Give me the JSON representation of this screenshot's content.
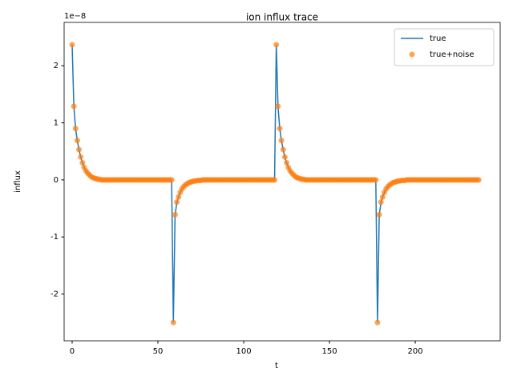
{
  "chart_data": {
    "type": "line",
    "title": "ion influx trace",
    "x_label": "t",
    "y_label": "influx",
    "y_offset_label": "1e−8",
    "x": [
      0,
      1,
      2,
      3,
      4,
      5,
      6,
      7,
      8,
      9,
      10,
      11,
      12,
      13,
      14,
      15,
      16,
      17,
      18,
      19,
      20,
      21,
      22,
      23,
      24,
      25,
      26,
      27,
      28,
      29,
      30,
      31,
      32,
      33,
      34,
      35,
      36,
      37,
      38,
      39,
      40,
      41,
      42,
      43,
      44,
      45,
      46,
      47,
      48,
      49,
      50,
      51,
      52,
      53,
      54,
      55,
      56,
      57,
      58,
      59,
      60,
      61,
      62,
      63,
      64,
      65,
      66,
      67,
      68,
      69,
      70,
      71,
      72,
      73,
      74,
      75,
      76,
      77,
      78,
      79,
      80,
      81,
      82,
      83,
      84,
      85,
      86,
      87,
      88,
      89,
      90,
      91,
      92,
      93,
      94,
      95,
      96,
      97,
      98,
      99,
      100,
      101,
      102,
      103,
      104,
      105,
      106,
      107,
      108,
      109,
      110,
      111,
      112,
      113,
      114,
      115,
      116,
      117,
      118,
      119,
      120,
      121,
      122,
      123,
      124,
      125,
      126,
      127,
      128,
      129,
      130,
      131,
      132,
      133,
      134,
      135,
      136,
      137,
      138,
      139,
      140,
      141,
      142,
      143,
      144,
      145,
      146,
      147,
      148,
      149,
      150,
      151,
      152,
      153,
      154,
      155,
      156,
      157,
      158,
      159,
      160,
      161,
      162,
      163,
      164,
      165,
      166,
      167,
      168,
      169,
      170,
      171,
      172,
      173,
      174,
      175,
      176,
      177,
      178,
      179,
      180,
      181,
      182,
      183,
      184,
      185,
      186,
      187,
      188,
      189,
      190,
      191,
      192,
      193,
      194,
      195,
      196,
      197,
      198,
      199,
      200,
      201,
      202,
      203,
      204,
      205,
      206,
      207,
      208,
      209,
      210,
      211,
      212,
      213,
      214,
      215,
      216,
      217,
      218,
      219,
      220,
      221,
      222,
      223,
      224,
      225,
      226,
      227,
      228,
      229,
      230,
      231,
      232,
      233,
      234,
      235,
      236,
      237
    ],
    "series": [
      {
        "name": "true",
        "type": "line",
        "color": "#1f77b4",
        "values": [
          2.37,
          1.29,
          0.9,
          0.69,
          0.53,
          0.4,
          0.3,
          0.22,
          0.16,
          0.12,
          0.09,
          0.06,
          0.04,
          0.03,
          0.02,
          0.01,
          0.01,
          0,
          0,
          0,
          0,
          0,
          0,
          0,
          0,
          0,
          0,
          0,
          0,
          0,
          0,
          0,
          0,
          0,
          0,
          0,
          0,
          0,
          0,
          0,
          0,
          0,
          0,
          0,
          0,
          0,
          0,
          0,
          0,
          0,
          0,
          0,
          0,
          0,
          0,
          0,
          0,
          0,
          0,
          -2.5,
          -0.62,
          -0.4,
          -0.3,
          -0.22,
          -0.16,
          -0.12,
          -0.09,
          -0.07,
          -0.05,
          -0.04,
          -0.03,
          -0.02,
          -0.02,
          -0.01,
          -0.01,
          -0.01,
          0,
          0,
          0,
          0,
          0,
          0,
          0,
          0,
          0,
          0,
          0,
          0,
          0,
          0,
          0,
          0,
          0,
          0,
          0,
          0,
          0,
          0,
          0,
          0,
          0,
          0,
          0,
          0,
          0,
          0,
          0,
          0,
          0,
          0,
          0,
          0,
          0,
          0,
          0,
          0,
          0,
          0,
          0,
          2.37,
          1.29,
          0.9,
          0.69,
          0.53,
          0.4,
          0.3,
          0.22,
          0.16,
          0.12,
          0.09,
          0.06,
          0.04,
          0.03,
          0.02,
          0.01,
          0.01,
          0,
          0,
          0,
          0,
          0,
          0,
          0,
          0,
          0,
          0,
          0,
          0,
          0,
          0,
          0,
          0,
          0,
          0,
          0,
          0,
          0,
          0,
          0,
          0,
          0,
          0,
          0,
          0,
          0,
          0,
          0,
          0,
          0,
          0,
          0,
          0,
          0,
          0,
          0,
          0,
          0,
          0,
          -2.5,
          -0.62,
          -0.4,
          -0.3,
          -0.22,
          -0.16,
          -0.12,
          -0.09,
          -0.07,
          -0.05,
          -0.04,
          -0.03,
          -0.02,
          -0.02,
          -0.01,
          -0.01,
          -0.01,
          0,
          0,
          0,
          0,
          0,
          0,
          0,
          0,
          0,
          0,
          0,
          0,
          0,
          0,
          0,
          0,
          0,
          0,
          0,
          0,
          0,
          0,
          0,
          0,
          0,
          0,
          0,
          0,
          0,
          0,
          0,
          0,
          0,
          0,
          0,
          0,
          0,
          0,
          0,
          0,
          0,
          0,
          0
        ]
      },
      {
        "name": "true+noise",
        "type": "scatter",
        "color": "#ff7f0e",
        "values": [
          2.37,
          1.29,
          0.9,
          0.69,
          0.53,
          0.4,
          0.3,
          0.22,
          0.16,
          0.12,
          0.09,
          0.06,
          0.04,
          0.03,
          0.02,
          0.01,
          0.01,
          0,
          0,
          0,
          0,
          0,
          0,
          0,
          0,
          0,
          0,
          0,
          0,
          0,
          0,
          0,
          0,
          0,
          0,
          0,
          0,
          0,
          0,
          0,
          0,
          0,
          0,
          0,
          0,
          0,
          0,
          0,
          0,
          0,
          0,
          0,
          0,
          0,
          0,
          0,
          0,
          0,
          0,
          -2.5,
          -0.61,
          -0.39,
          -0.3,
          -0.22,
          -0.16,
          -0.12,
          -0.09,
          -0.07,
          -0.05,
          -0.04,
          -0.03,
          -0.02,
          -0.02,
          -0.01,
          -0.01,
          -0.01,
          0,
          0,
          0,
          0,
          0,
          0,
          0,
          0,
          0,
          0,
          0,
          0,
          0,
          0,
          0,
          0,
          0,
          0,
          0,
          0,
          0,
          0,
          0,
          0,
          0,
          0,
          0,
          0,
          0,
          0,
          0,
          0,
          0,
          0,
          0,
          0,
          0,
          0,
          0,
          0,
          0,
          0,
          0,
          2.37,
          1.29,
          0.9,
          0.69,
          0.53,
          0.4,
          0.3,
          0.22,
          0.16,
          0.12,
          0.09,
          0.06,
          0.04,
          0.03,
          0.02,
          0.01,
          0.01,
          0,
          0,
          0,
          0,
          0,
          0,
          0,
          0,
          0,
          0,
          0,
          0,
          0,
          0,
          0,
          0,
          0,
          0,
          0,
          0,
          0,
          0,
          0,
          0,
          0,
          0,
          0,
          0,
          0,
          0,
          0,
          0,
          0,
          0,
          0,
          0,
          0,
          0,
          0,
          0,
          0,
          0,
          -2.5,
          -0.61,
          -0.39,
          -0.3,
          -0.22,
          -0.16,
          -0.12,
          -0.09,
          -0.07,
          -0.05,
          -0.04,
          -0.03,
          -0.02,
          -0.02,
          -0.01,
          -0.01,
          -0.01,
          0,
          0,
          0,
          0,
          0,
          0,
          0,
          0,
          0,
          0,
          0,
          0,
          0,
          0,
          0,
          0,
          0,
          0,
          0,
          0,
          0,
          0,
          0,
          0,
          0,
          0,
          0,
          0,
          0,
          0,
          0,
          0,
          0,
          0,
          0,
          0,
          0,
          0,
          0,
          0,
          0,
          0,
          0
        ]
      }
    ],
    "xlim": [
      -4.67,
      249.5
    ],
    "xticks": [
      0,
      50,
      100,
      150,
      200
    ],
    "ylim": [
      -2.82,
      2.76
    ],
    "yticks": [
      -2,
      -1,
      0,
      1,
      2
    ],
    "legend": "upper right",
    "grid": false
  }
}
